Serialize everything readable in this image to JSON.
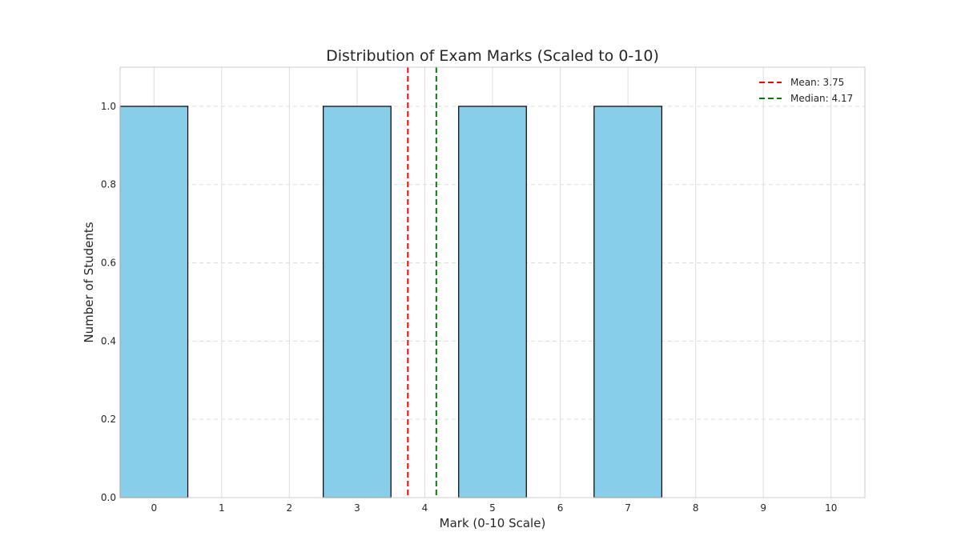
{
  "chart_data": {
    "type": "bar",
    "title": "Distribution of Exam Marks (Scaled to 0-10)",
    "xlabel": "Mark (0-10 Scale)",
    "ylabel": "Number of Students",
    "xlim": [
      -0.5,
      10.5
    ],
    "ylim": [
      0,
      1.1
    ],
    "x_ticks": [
      "0",
      "1",
      "2",
      "3",
      "4",
      "5",
      "6",
      "7",
      "8",
      "9",
      "10"
    ],
    "y_ticks": [
      "0.0",
      "0.2",
      "0.4",
      "0.6",
      "0.8",
      "1.0"
    ],
    "bins": [
      {
        "x": 0,
        "value": 1
      },
      {
        "x": 3,
        "value": 1
      },
      {
        "x": 5,
        "value": 1
      },
      {
        "x": 7,
        "value": 1
      }
    ],
    "bar_width": 1,
    "bar_color": "#87ceeb",
    "bar_edge_color": "#000000",
    "reference_lines": [
      {
        "label": "Mean: 3.75",
        "value": 3.75,
        "color": "#ff0000",
        "style": "dashed"
      },
      {
        "label": "Median: 4.17",
        "value": 4.17,
        "color": "#008000",
        "style": "dashed"
      }
    ],
    "grid": true,
    "legend_position": "top-right"
  }
}
